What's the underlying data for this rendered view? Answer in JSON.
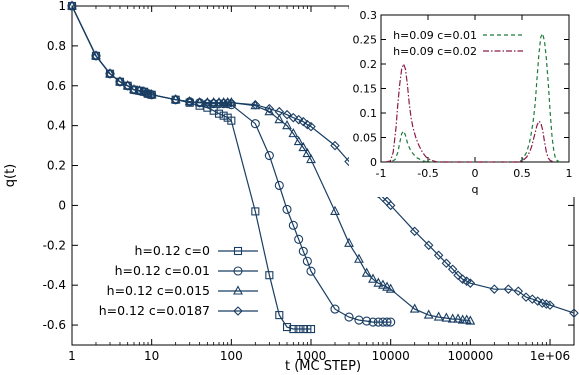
{
  "chart_data": [
    {
      "type": "line",
      "xlabel": "t (MC STEP)",
      "ylabel": "q(t)",
      "xscale": "log",
      "xlim": [
        1,
        2000000
      ],
      "ylim": [
        -0.7,
        1.0
      ],
      "x_ticks": [
        1,
        10,
        100,
        1000,
        10000,
        100000,
        1000000
      ],
      "x_tick_labels": [
        "1",
        "10",
        "100",
        "1000",
        "10000",
        "100000",
        "1e+06"
      ],
      "y_ticks": [
        -0.6,
        -0.4,
        -0.2,
        0,
        0.2,
        0.4,
        0.6,
        0.8,
        1
      ],
      "y_tick_labels": [
        "-0.6",
        "-0.4",
        "-0.2",
        "0",
        "0.2",
        "0.4",
        "0.6",
        "0.8",
        "1"
      ],
      "grid": false,
      "legend_position": "bottom-left",
      "series": [
        {
          "name": "h=0.12 c=0",
          "marker": "square",
          "color": "#1a3e63",
          "x": [
            1,
            2,
            3,
            4,
            5,
            6,
            7,
            8,
            9,
            10,
            20,
            30,
            40,
            50,
            60,
            70,
            80,
            90,
            100,
            200,
            300,
            400,
            500,
            600,
            700,
            800,
            900,
            1000
          ],
          "y": [
            1.0,
            0.75,
            0.66,
            0.62,
            0.6,
            0.58,
            0.575,
            0.57,
            0.56,
            0.555,
            0.53,
            0.515,
            0.5,
            0.49,
            0.475,
            0.46,
            0.45,
            0.44,
            0.425,
            -0.03,
            -0.35,
            -0.55,
            -0.61,
            -0.62,
            -0.62,
            -0.62,
            -0.62,
            -0.62
          ]
        },
        {
          "name": "h=0.12 c=0.01",
          "marker": "circle",
          "color": "#1a3e63",
          "x": [
            1,
            2,
            3,
            4,
            5,
            6,
            7,
            8,
            9,
            10,
            20,
            30,
            40,
            50,
            60,
            70,
            80,
            90,
            100,
            200,
            300,
            400,
            500,
            600,
            700,
            800,
            900,
            1000,
            2000,
            3000,
            4000,
            5000,
            6000,
            7000,
            8000,
            9000,
            10000
          ],
          "y": [
            1.0,
            0.75,
            0.66,
            0.62,
            0.6,
            0.58,
            0.575,
            0.57,
            0.56,
            0.555,
            0.53,
            0.52,
            0.515,
            0.51,
            0.51,
            0.51,
            0.51,
            0.51,
            0.505,
            0.41,
            0.25,
            0.1,
            -0.02,
            -0.1,
            -0.17,
            -0.23,
            -0.28,
            -0.33,
            -0.52,
            -0.56,
            -0.575,
            -0.58,
            -0.585,
            -0.585,
            -0.585,
            -0.585,
            -0.585
          ]
        },
        {
          "name": "h=0.12 c=0.015",
          "marker": "triangle",
          "color": "#1a3e63",
          "x": [
            1,
            2,
            3,
            4,
            5,
            6,
            7,
            8,
            9,
            10,
            20,
            30,
            40,
            50,
            60,
            70,
            80,
            90,
            100,
            200,
            300,
            400,
            500,
            600,
            700,
            800,
            900,
            1000,
            2000,
            3000,
            4000,
            5000,
            6000,
            7000,
            8000,
            9000,
            10000,
            20000,
            30000,
            40000,
            50000,
            60000,
            70000,
            80000,
            90000,
            100000
          ],
          "y": [
            1.0,
            0.75,
            0.66,
            0.62,
            0.6,
            0.58,
            0.575,
            0.57,
            0.56,
            0.555,
            0.53,
            0.52,
            0.515,
            0.515,
            0.515,
            0.515,
            0.515,
            0.515,
            0.515,
            0.5,
            0.47,
            0.43,
            0.4,
            0.36,
            0.32,
            0.29,
            0.26,
            0.23,
            -0.03,
            -0.19,
            -0.27,
            -0.34,
            -0.37,
            -0.39,
            -0.4,
            -0.41,
            -0.42,
            -0.52,
            -0.55,
            -0.56,
            -0.565,
            -0.57,
            -0.57,
            -0.575,
            -0.575,
            -0.58
          ]
        },
        {
          "name": "h=0.12 c=0.0187",
          "marker": "diamond",
          "color": "#1a3e63",
          "x": [
            1,
            2,
            3,
            4,
            5,
            6,
            7,
            8,
            9,
            10,
            20,
            30,
            40,
            50,
            60,
            70,
            80,
            90,
            100,
            200,
            300,
            400,
            500,
            600,
            700,
            800,
            900,
            1000,
            2000,
            3000,
            4000,
            5000,
            6000,
            7000,
            8000,
            9000,
            10000,
            20000,
            30000,
            40000,
            50000,
            60000,
            70000,
            80000,
            90000,
            100000,
            200000,
            300000,
            400000,
            500000,
            600000,
            700000,
            800000,
            900000,
            1000000,
            2000000
          ],
          "y": [
            1.0,
            0.75,
            0.66,
            0.62,
            0.6,
            0.58,
            0.575,
            0.57,
            0.56,
            0.555,
            0.53,
            0.52,
            0.515,
            0.515,
            0.515,
            0.515,
            0.515,
            0.515,
            0.515,
            0.505,
            0.485,
            0.47,
            0.455,
            0.44,
            0.43,
            0.42,
            0.405,
            0.395,
            0.3,
            0.22,
            0.17,
            0.12,
            0.09,
            0.06,
            0.04,
            0.02,
            0.0,
            -0.13,
            -0.2,
            -0.25,
            -0.29,
            -0.32,
            -0.35,
            -0.37,
            -0.38,
            -0.39,
            -0.42,
            -0.42,
            -0.43,
            -0.46,
            -0.47,
            -0.48,
            -0.49,
            -0.495,
            -0.5,
            -0.54
          ]
        }
      ]
    },
    {
      "type": "line",
      "position": "top-right inset",
      "xlabel": "q",
      "ylabel": "",
      "xlim": [
        -1,
        1
      ],
      "ylim": [
        0,
        0.3
      ],
      "x_ticks": [
        -1,
        -0.5,
        0,
        0.5,
        1
      ],
      "x_tick_labels": [
        "-1",
        "-0.5",
        "0",
        "0.5",
        "1"
      ],
      "y_ticks": [
        0,
        0.05,
        0.1,
        0.15,
        0.2,
        0.25,
        0.3
      ],
      "y_tick_labels": [
        "0",
        "0.05",
        "0.1",
        "0.15",
        "0.2",
        "0.25",
        "0.3"
      ],
      "legend_position": "top-left",
      "series": [
        {
          "name": "h=0.09 c=0.01",
          "style": "dashed",
          "color": "#1f7a3a",
          "x": [
            -0.95,
            -0.9,
            -0.85,
            -0.82,
            -0.8,
            -0.78,
            -0.76,
            -0.74,
            -0.72,
            -0.7,
            -0.68,
            -0.65,
            -0.62,
            -0.58,
            -0.55,
            -0.5,
            -0.45,
            -0.4,
            0.4,
            0.45,
            0.5,
            0.55,
            0.58,
            0.6,
            0.62,
            0.64,
            0.66,
            0.68,
            0.7,
            0.72,
            0.74,
            0.76,
            0.78,
            0.8,
            0.82,
            0.84,
            0.86,
            0.9
          ],
          "y": [
            0,
            0,
            0.005,
            0.02,
            0.04,
            0.058,
            0.063,
            0.055,
            0.04,
            0.03,
            0.022,
            0.015,
            0.009,
            0.005,
            0.002,
            0,
            0,
            0,
            0,
            0,
            0.003,
            0.02,
            0.04,
            0.06,
            0.085,
            0.12,
            0.17,
            0.22,
            0.255,
            0.262,
            0.245,
            0.21,
            0.16,
            0.1,
            0.05,
            0.02,
            0.005,
            0
          ]
        },
        {
          "name": "h=0.09 c=0.02",
          "style": "dash-dot",
          "color": "#8a1c4a",
          "x": [
            -0.95,
            -0.9,
            -0.87,
            -0.84,
            -0.82,
            -0.8,
            -0.78,
            -0.76,
            -0.74,
            -0.72,
            -0.7,
            -0.68,
            -0.66,
            -0.63,
            -0.6,
            -0.56,
            -0.52,
            -0.48,
            -0.44,
            -0.4,
            0.4,
            0.46,
            0.52,
            0.55,
            0.58,
            0.6,
            0.62,
            0.64,
            0.66,
            0.68,
            0.7,
            0.72,
            0.74,
            0.76,
            0.78,
            0.8,
            0.84
          ],
          "y": [
            0,
            0.002,
            0.02,
            0.07,
            0.12,
            0.16,
            0.19,
            0.2,
            0.19,
            0.16,
            0.12,
            0.09,
            0.07,
            0.05,
            0.035,
            0.02,
            0.01,
            0.005,
            0.002,
            0,
            0,
            0,
            0.005,
            0.01,
            0.02,
            0.03,
            0.045,
            0.06,
            0.075,
            0.083,
            0.08,
            0.065,
            0.04,
            0.02,
            0.008,
            0.003,
            0
          ]
        }
      ]
    }
  ]
}
